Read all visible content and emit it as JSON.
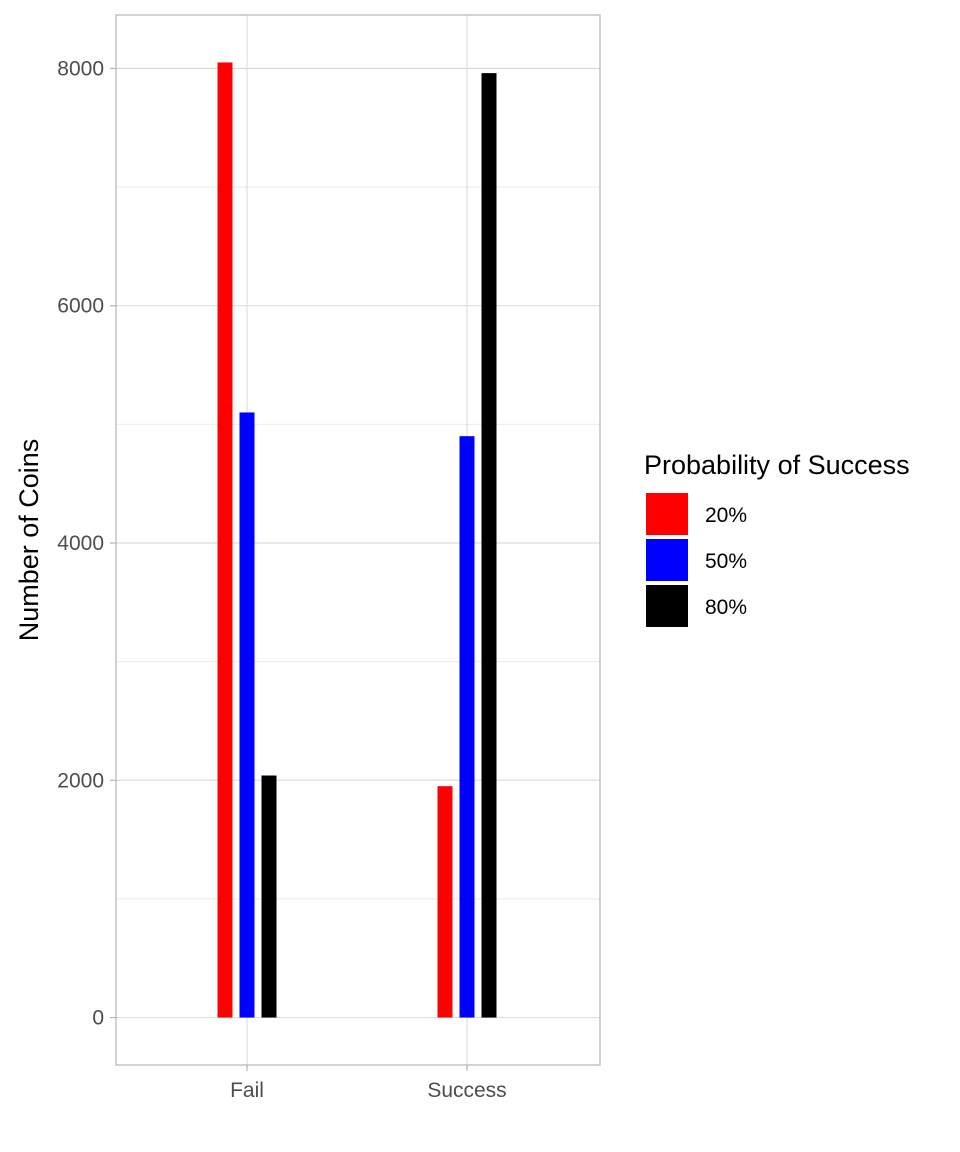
{
  "chart_data": {
    "type": "bar",
    "categories": [
      "Fail",
      "Success"
    ],
    "series": [
      {
        "name": "20%",
        "color": "#ff0000",
        "values": [
          8050,
          1950
        ]
      },
      {
        "name": "50%",
        "color": "#0000ff",
        "values": [
          5100,
          4900
        ]
      },
      {
        "name": "80%",
        "color": "#000000",
        "values": [
          2040,
          7960
        ]
      }
    ],
    "ylabel": "Number of Coins",
    "xlabel": "",
    "yticks": [
      "0",
      "2000",
      "4000",
      "6000",
      "8000"
    ],
    "ylim": [
      -400,
      8450
    ],
    "grid": true,
    "legend": {
      "title": "Probability of Success",
      "position": "right"
    }
  }
}
